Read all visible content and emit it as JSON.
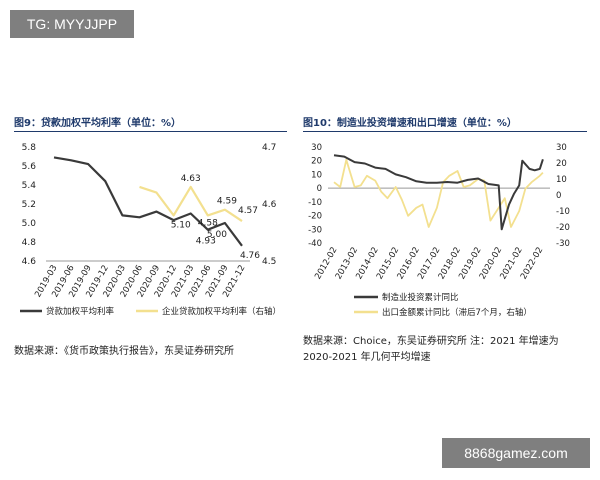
{
  "watermarks": {
    "top": "TG: MYYJJPP",
    "bottom": "8868gamez.com"
  },
  "left": {
    "title": "图9：贷款加权平均利率（单位：%）",
    "source": "数据来源：《货币政策执行报告》，东吴证券研究所"
  },
  "right": {
    "title": "图10：制造业投资增速和出口增速（单位：%）",
    "source_line1": "数据来源：Choice，东吴证券研究所  注：2021 年增速为",
    "source_line2": "2020-2021 年几何平均增速"
  },
  "colors": {
    "dark": "#3a3a3a",
    "yellow": "#f3e08f",
    "title": "#1f3a6b"
  },
  "chart_data": [
    {
      "type": "line",
      "title": "图9：贷款加权平均利率（单位：%）",
      "categories": [
        "2019-03",
        "2019-06",
        "2019-09",
        "2019-12",
        "2020-03",
        "2020-06",
        "2020-09",
        "2020-12",
        "2021-03",
        "2021-06",
        "2021-09",
        "2021-12"
      ],
      "ylim": [
        4.6,
        5.8
      ],
      "y_ticks": [
        "4.6",
        "4.8",
        "5.0",
        "5.2",
        "5.4",
        "5.6",
        "5.8"
      ],
      "y2lim": [
        4.5,
        4.7
      ],
      "y2_ticks": [
        "4.5",
        "4.6",
        "4.7"
      ],
      "series": [
        {
          "name": "贷款加权平均利率",
          "axis": "left",
          "x": [
            "2019-03",
            "2019-06",
            "2019-09",
            "2019-12",
            "2020-03",
            "2020-06",
            "2020-09",
            "2020-12",
            "2021-03",
            "2021-06",
            "2021-09",
            "2021-12"
          ],
          "values": [
            5.69,
            5.66,
            5.62,
            5.44,
            5.08,
            5.06,
            5.12,
            5.03,
            5.1,
            4.93,
            5.0,
            4.76
          ]
        },
        {
          "name": "企业贷款加权平均利率（右轴）",
          "axis": "right",
          "x": [
            "2020-06",
            "2020-09",
            "2020-12",
            "2021-03",
            "2021-06",
            "2021-09",
            "2021-12"
          ],
          "values": [
            4.63,
            4.62,
            4.58,
            4.63,
            4.58,
            4.59,
            4.57
          ]
        }
      ],
      "annotations": [
        {
          "text": "4.63",
          "series": 1,
          "index": 3
        },
        {
          "text": "4.58",
          "series": 1,
          "index": 4
        },
        {
          "text": "4.59",
          "series": 1,
          "index": 5
        },
        {
          "text": "4.57",
          "series": 1,
          "index": 6
        },
        {
          "text": "5.10",
          "series": 0,
          "index": 8
        },
        {
          "text": "4.93",
          "series": 0,
          "index": 9
        },
        {
          "text": "5.00",
          "series": 0,
          "index": 10
        },
        {
          "text": "4.76",
          "series": 0,
          "index": 11
        }
      ],
      "legend": [
        "贷款加权平均利率",
        "企业贷款加权平均利率（右轴）"
      ],
      "legend_position": "bottom"
    },
    {
      "type": "line",
      "title": "图10：制造业投资增速和出口增速（单位：%）",
      "categories": [
        "2012-02",
        "2013-02",
        "2014-02",
        "2015-02",
        "2016-02",
        "2017-02",
        "2018-02",
        "2019-02",
        "2020-02",
        "2021-02",
        "2022-02"
      ],
      "ylim": [
        -40,
        30
      ],
      "y_ticks": [
        "-40",
        "-30",
        "-20",
        "-10",
        "0",
        "10",
        "20",
        "30"
      ],
      "y2lim": [
        -30,
        30
      ],
      "y2_ticks": [
        "-30",
        "-20",
        "-10",
        "0",
        "10",
        "20",
        "30"
      ],
      "series": [
        {
          "name": "制造业投资累计同比",
          "axis": "left",
          "x": [
            2012.0,
            2012.5,
            2013.0,
            2013.5,
            2014.0,
            2014.5,
            2015.0,
            2015.5,
            2016.0,
            2016.5,
            2017.0,
            2017.5,
            2018.0,
            2018.5,
            2019.0,
            2019.5,
            2020.0,
            2020.15,
            2020.5,
            2020.75,
            2021.0,
            2021.15,
            2021.5,
            2021.75,
            2022.0,
            2022.15
          ],
          "values": [
            24,
            23,
            19,
            18,
            15,
            14,
            10,
            8,
            5,
            4,
            4,
            4.5,
            4,
            6,
            7,
            3,
            2,
            -30,
            -12,
            -4,
            2,
            20,
            14,
            13,
            14,
            21
          ]
        },
        {
          "name": "出口金额累计同比（滞后7个月，右轴）",
          "axis": "right",
          "x": [
            2012.0,
            2012.3,
            2012.6,
            2013.0,
            2013.3,
            2013.6,
            2014.0,
            2014.3,
            2014.6,
            2015.0,
            2015.3,
            2015.6,
            2016.0,
            2016.3,
            2016.6,
            2017.0,
            2017.3,
            2017.6,
            2018.0,
            2018.3,
            2018.6,
            2019.0,
            2019.3,
            2019.6,
            2020.0,
            2020.3,
            2020.6,
            2021.0,
            2021.3,
            2021.6,
            2022.0,
            2022.15
          ],
          "values": [
            8,
            5,
            22,
            5,
            6,
            12,
            9,
            2,
            -2,
            5,
            -3,
            -13,
            -8,
            -6,
            -20,
            -8,
            8,
            12,
            15,
            5,
            6,
            10,
            9,
            -16,
            -8,
            -2,
            -20,
            -10,
            4,
            8,
            12,
            14
          ]
        }
      ],
      "legend": [
        "制造业投资累计同比",
        "出口金额累计同比（滞后7个月，右轴）"
      ],
      "legend_position": "bottom"
    }
  ]
}
